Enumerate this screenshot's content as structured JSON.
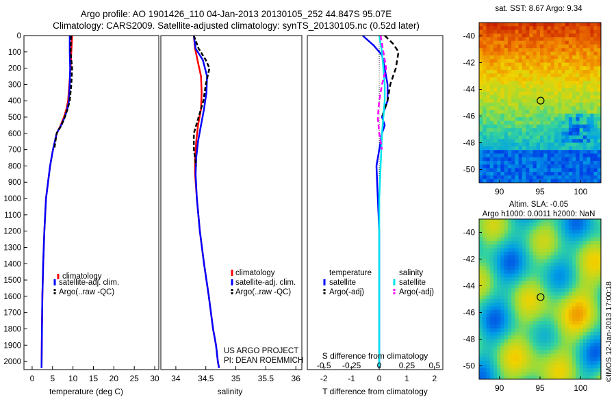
{
  "header": {
    "line1": "Argo profile: AO 1901426_110 04-Jan-2013 20130105_252 44.847S 95.07E",
    "line2": "Climatology: CARS2009. Satellite-adjusted climatology: synTS_20130105.nc (0.52d later)"
  },
  "colors": {
    "climatology": "#ff0000",
    "satellite": "#0000ff",
    "argo": "#000000",
    "salinity_satellite": "#00e5ee",
    "salinity_argo": "#ff00ff"
  },
  "chart_data": [
    {
      "id": "temperature",
      "type": "line",
      "xlabel": "temperature (deg C)",
      "ylabel": "",
      "xlim": [
        -2,
        31
      ],
      "ylim": [
        2050,
        0
      ],
      "xticks": [
        0,
        5,
        10,
        15,
        20,
        25,
        30
      ],
      "yticks": [
        0,
        100,
        200,
        300,
        400,
        500,
        600,
        700,
        800,
        900,
        1000,
        1100,
        1200,
        1300,
        1400,
        1500,
        1600,
        1700,
        1800,
        1900,
        2000
      ],
      "legend": [
        "climatology",
        "satellite-adj. clim.",
        "Argo(..raw -QC)"
      ],
      "series": [
        {
          "name": "climatology",
          "x": [
            9.8,
            9.6,
            9.4,
            9.1,
            8.8,
            8.4,
            7.8,
            7.0,
            6.0,
            5.1,
            4.4,
            3.9,
            3.4,
            3.0,
            2.7,
            2.5,
            2.4,
            2.3
          ],
          "y": [
            0,
            100,
            200,
            300,
            400,
            450,
            500,
            550,
            600,
            700,
            800,
            900,
            1000,
            1200,
            1400,
            1600,
            1800,
            2040
          ]
        },
        {
          "name": "satellite-adj. clim.",
          "x": [
            9.2,
            9.2,
            9.3,
            9.2,
            9.0,
            8.6,
            8.0,
            7.1,
            6.0,
            5.1,
            4.4,
            3.9,
            3.4,
            3.0,
            2.7,
            2.5,
            2.4,
            2.3
          ],
          "y": [
            0,
            100,
            200,
            300,
            400,
            450,
            500,
            550,
            600,
            700,
            800,
            900,
            1000,
            1200,
            1400,
            1600,
            1800,
            2040
          ]
        },
        {
          "name": "Argo(..raw -QC)",
          "x": [
            9.5,
            9.4,
            9.8,
            9.6,
            9.2,
            8.7,
            8.0,
            7.2,
            6.0,
            5.4
          ],
          "y": [
            0,
            100,
            200,
            300,
            400,
            450,
            500,
            550,
            600,
            700
          ]
        }
      ]
    },
    {
      "id": "salinity",
      "type": "line",
      "xlabel": "salinity",
      "ylabel": "",
      "xlim": [
        33.75,
        36.1
      ],
      "ylim": [
        2050,
        0
      ],
      "xticks": [
        34,
        34.5,
        35,
        35.5,
        36
      ],
      "legend": [
        "climatology",
        "satellite-adj. clim.",
        "Argo(..raw -QC)"
      ],
      "series": [
        {
          "name": "climatology",
          "x": [
            34.3,
            34.32,
            34.36,
            34.42,
            34.43,
            34.42,
            34.37,
            34.34,
            34.32,
            34.32,
            34.35,
            34.4,
            34.47,
            34.55,
            34.62,
            34.67,
            34.7,
            34.72
          ],
          "y": [
            0,
            80,
            150,
            250,
            350,
            450,
            550,
            650,
            750,
            850,
            1000,
            1200,
            1400,
            1600,
            1800,
            1900,
            2000,
            2040
          ]
        },
        {
          "name": "satellite-adj. clim.",
          "x": [
            34.3,
            34.33,
            34.45,
            34.52,
            34.51,
            34.47,
            34.42,
            34.37,
            34.34,
            34.33,
            34.35,
            34.4,
            34.47,
            34.55,
            34.62,
            34.67,
            34.7,
            34.72
          ],
          "y": [
            0,
            80,
            150,
            250,
            350,
            450,
            550,
            650,
            750,
            850,
            1000,
            1200,
            1400,
            1600,
            1800,
            1900,
            2000,
            2040
          ]
        },
        {
          "name": "Argo(..raw -QC)",
          "x": [
            34.3,
            34.38,
            34.5,
            34.56,
            34.5,
            34.46,
            34.38,
            34.3,
            34.3,
            34.34
          ],
          "y": [
            0,
            80,
            150,
            200,
            300,
            400,
            500,
            600,
            700,
            800
          ]
        }
      ]
    },
    {
      "id": "difference",
      "type": "line",
      "xlabel": "T difference from climatology",
      "xlabel2": "S difference from climatology",
      "xlim": [
        -2.6,
        2.3
      ],
      "ylim": [
        2050,
        0
      ],
      "xticks": [
        -2,
        -1,
        0,
        1,
        2
      ],
      "xticks2": [
        "-0.5",
        "-0.25",
        "0",
        "0.25",
        "0.5"
      ],
      "legend_headers": [
        "temperature",
        "salinity"
      ],
      "legend": [
        "satellite",
        "Argo(-adj)",
        "satellite",
        "Argo(-adj)"
      ],
      "series": [
        {
          "name": "satellite",
          "x": [
            -0.6,
            -0.2,
            0.1,
            0.2,
            0.3,
            0.3,
            0.2,
            0.1,
            0.2,
            0.1,
            0.0,
            -0.1,
            -0.05,
            0.0,
            0.0,
            0.0,
            0.0
          ],
          "y": [
            0,
            60,
            120,
            200,
            300,
            400,
            450,
            500,
            550,
            600,
            700,
            800,
            1000,
            1200,
            1500,
            1800,
            2040
          ]
        },
        {
          "name": "Argo(-adj)",
          "x": [
            0.2,
            0.5,
            0.7,
            0.6,
            0.4,
            0.3,
            0.1
          ],
          "y": [
            0,
            50,
            100,
            200,
            300,
            400,
            500
          ]
        },
        {
          "name": "satellite",
          "x": [
            0.0,
            0.1,
            0.15,
            0.2,
            0.2,
            0.15,
            0.1,
            0.05,
            0.0,
            0.0,
            0.0
          ],
          "y": [
            0,
            100,
            200,
            300,
            400,
            500,
            600,
            800,
            1000,
            1500,
            2040
          ]
        },
        {
          "name": "Argo(-adj)",
          "x": [
            0.05,
            0.15,
            0.25,
            0.1,
            0.0,
            -0.05,
            0.0,
            0.1
          ],
          "y": [
            0,
            100,
            200,
            300,
            400,
            500,
            600,
            700
          ]
        }
      ]
    },
    {
      "id": "sst_map",
      "type": "heatmap",
      "title": "sat. SST: 8.67 Argo: 9.34",
      "xticks": [
        90,
        95,
        100
      ],
      "yticks": [
        -40,
        -42,
        -44,
        -46,
        -48,
        -50
      ],
      "xlim": [
        87.5,
        102.5
      ],
      "ylim": [
        -51,
        -39
      ],
      "marker": {
        "lon": 95.07,
        "lat": -44.85
      }
    },
    {
      "id": "sla_map",
      "type": "heatmap",
      "title": "Altim. SLA: -0.05",
      "subtitle": "Argo h1000: 0.0011 h2000: NaN",
      "xticks": [
        90,
        95,
        100
      ],
      "yticks": [
        -40,
        -42,
        -44,
        -46,
        -48,
        -50
      ],
      "xlim": [
        87.5,
        102.5
      ],
      "ylim": [
        -51,
        -39
      ],
      "marker": {
        "lon": 95.07,
        "lat": -44.85
      }
    }
  ],
  "annotations": {
    "project": "US ARGO PROJECT",
    "pi": "PI: DEAN ROEMMICH",
    "stamp": "©IMOS 12-Jan-2013 17:00:18"
  }
}
